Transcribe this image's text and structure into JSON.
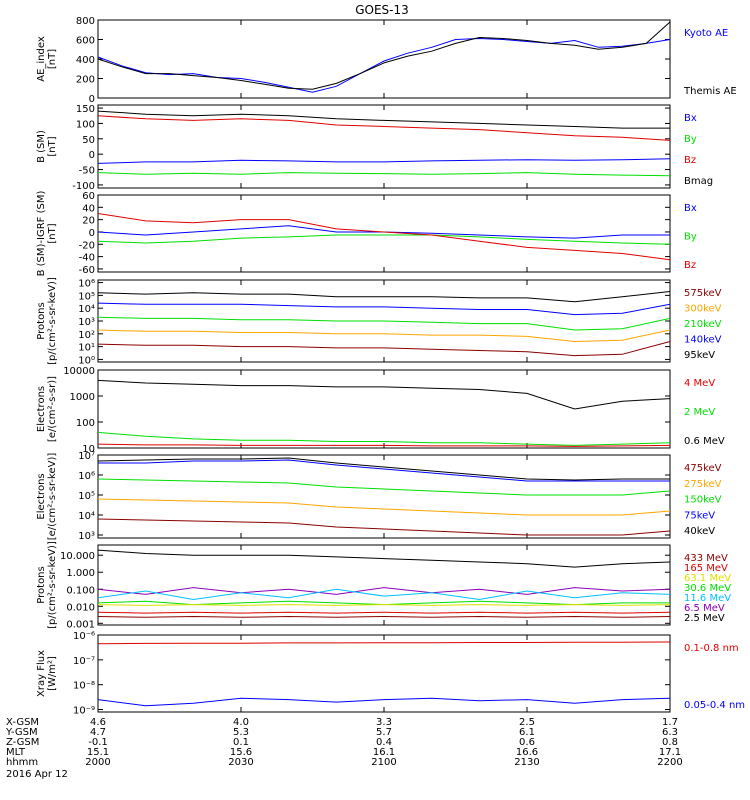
{
  "title": "GOES-13",
  "colors": {
    "black": "#000000",
    "blue": "#0000ff",
    "green": "#00e000",
    "red": "#e00000",
    "orange": "#ffa500",
    "darkred": "#8b0000",
    "gold": "#e0e000",
    "cyan": "#00bfff",
    "purple": "#8b00b8"
  },
  "footer": {
    "rows": [
      {
        "label": "X-GSM",
        "values": [
          "4.6",
          "4.0",
          "3.3",
          "2.5",
          "1.7"
        ]
      },
      {
        "label": "Y-GSM",
        "values": [
          "4.7",
          "5.3",
          "5.7",
          "6.1",
          "6.3"
        ]
      },
      {
        "label": "Z-GSM",
        "values": [
          "-0.1",
          "0.1",
          "0.4",
          "0.6",
          "0.8"
        ]
      },
      {
        "label": "MLT",
        "values": [
          "15.1",
          "15.6",
          "16.1",
          "16.6",
          "17.1"
        ]
      },
      {
        "label": "hhmm",
        "values": [
          "2000",
          "2030",
          "2100",
          "2130",
          "2200"
        ]
      }
    ],
    "date": "2016 Apr 12"
  },
  "chart_data": [
    {
      "type": "line",
      "ylabel": [
        "AE_index",
        "[nT]"
      ],
      "ylim": [
        0,
        800
      ],
      "yticks": [
        "0",
        "200",
        "400",
        "600",
        "800"
      ],
      "legend": [
        {
          "name": "Kyoto AE",
          "color": "blue"
        },
        {
          "name": "Themis AE",
          "color": "black"
        }
      ],
      "x": [
        2000,
        2005,
        2010,
        2015,
        2020,
        2025,
        2030,
        2035,
        2040,
        2045,
        2050,
        2055,
        2100,
        2105,
        2110,
        2115,
        2120,
        2125,
        2130,
        2135,
        2140,
        2145,
        2150,
        2155,
        2200
      ],
      "series": [
        {
          "name": "Kyoto AE",
          "color": "blue",
          "values": [
            420,
            330,
            260,
            240,
            250,
            210,
            200,
            160,
            110,
            60,
            120,
            250,
            380,
            460,
            520,
            600,
            610,
            600,
            580,
            560,
            590,
            520,
            530,
            560,
            600
          ]
        },
        {
          "name": "Themis AE",
          "color": "black",
          "values": [
            400,
            320,
            250,
            250,
            230,
            210,
            180,
            140,
            100,
            90,
            150,
            250,
            360,
            430,
            480,
            560,
            620,
            610,
            590,
            560,
            540,
            500,
            520,
            560,
            780
          ]
        }
      ]
    },
    {
      "type": "line",
      "ylabel": [
        "B (SM)",
        "[nT]"
      ],
      "ylim": [
        -110,
        160
      ],
      "yticks": [
        "-100",
        "-50",
        "0",
        "50",
        "100",
        "150"
      ],
      "legend": [
        {
          "name": "Bx",
          "color": "blue"
        },
        {
          "name": "By",
          "color": "green"
        },
        {
          "name": "Bz",
          "color": "red"
        },
        {
          "name": "Bmag",
          "color": "black"
        }
      ],
      "x": [
        2000,
        2010,
        2020,
        2030,
        2040,
        2050,
        2100,
        2110,
        2120,
        2130,
        2140,
        2150,
        2200
      ],
      "series": [
        {
          "name": "Bx",
          "color": "blue",
          "values": [
            -30,
            -25,
            -25,
            -20,
            -22,
            -25,
            -25,
            -22,
            -20,
            -18,
            -20,
            -18,
            -15
          ]
        },
        {
          "name": "By",
          "color": "green",
          "values": [
            -60,
            -65,
            -62,
            -65,
            -60,
            -62,
            -63,
            -65,
            -63,
            -60,
            -65,
            -68,
            -70
          ]
        },
        {
          "name": "Bz",
          "color": "red",
          "values": [
            125,
            115,
            110,
            115,
            110,
            95,
            90,
            85,
            80,
            70,
            60,
            55,
            45
          ]
        },
        {
          "name": "Bmag",
          "color": "black",
          "values": [
            140,
            130,
            125,
            130,
            125,
            115,
            110,
            105,
            100,
            95,
            90,
            85,
            85
          ]
        }
      ]
    },
    {
      "type": "line",
      "ylabel": [
        "B (SM)-IGRF (SM)",
        "[nT]"
      ],
      "ylim": [
        -65,
        60
      ],
      "yticks": [
        "-60",
        "-40",
        "-20",
        "0",
        "20",
        "40",
        "60"
      ],
      "legend": [
        {
          "name": "Bx",
          "color": "blue"
        },
        {
          "name": "By",
          "color": "green"
        },
        {
          "name": "Bz",
          "color": "red"
        }
      ],
      "x": [
        2000,
        2010,
        2020,
        2030,
        2040,
        2050,
        2100,
        2110,
        2120,
        2130,
        2140,
        2150,
        2200
      ],
      "series": [
        {
          "name": "Bx",
          "color": "blue",
          "values": [
            0,
            -5,
            0,
            5,
            10,
            0,
            0,
            -2,
            -5,
            -8,
            -10,
            -5,
            -5
          ]
        },
        {
          "name": "By",
          "color": "green",
          "values": [
            -15,
            -18,
            -15,
            -10,
            -8,
            -5,
            -5,
            -5,
            -8,
            -12,
            -15,
            -18,
            -20
          ]
        },
        {
          "name": "Bz",
          "color": "red",
          "values": [
            30,
            18,
            15,
            20,
            20,
            5,
            0,
            -5,
            -15,
            -25,
            -30,
            -35,
            -45
          ]
        }
      ]
    },
    {
      "type": "line",
      "log_scale": true,
      "ylabel": [
        "Protons",
        "[p/(cm²-s-sr-keV)]"
      ],
      "ylim_log10": [
        -0.2,
        6.2
      ],
      "yticks": [
        "10⁰",
        "10¹",
        "10²",
        "10³",
        "10⁴",
        "10⁵",
        "10⁶"
      ],
      "legend": [
        {
          "name": "575keV",
          "color": "darkred"
        },
        {
          "name": "300keV",
          "color": "orange"
        },
        {
          "name": "210keV",
          "color": "green"
        },
        {
          "name": "140keV",
          "color": "blue"
        },
        {
          "name": "95keV",
          "color": "black"
        }
      ],
      "x": [
        2000,
        2010,
        2020,
        2030,
        2040,
        2050,
        2100,
        2110,
        2120,
        2130,
        2140,
        2150,
        2200
      ],
      "series": [
        {
          "name": "95keV",
          "color": "black",
          "log10_values": [
            5.2,
            5.1,
            5.2,
            5.1,
            5.1,
            4.9,
            4.9,
            4.9,
            4.8,
            4.8,
            4.5,
            4.9,
            5.3
          ]
        },
        {
          "name": "140keV",
          "color": "blue",
          "log10_values": [
            4.4,
            4.3,
            4.3,
            4.3,
            4.2,
            4.1,
            4.1,
            4.0,
            3.9,
            3.9,
            3.5,
            3.6,
            4.3
          ]
        },
        {
          "name": "210keV",
          "color": "green",
          "log10_values": [
            3.3,
            3.2,
            3.2,
            3.1,
            3.1,
            3.0,
            3.0,
            2.9,
            2.8,
            2.8,
            2.3,
            2.4,
            3.2
          ]
        },
        {
          "name": "300keV",
          "color": "orange",
          "log10_values": [
            2.3,
            2.2,
            2.2,
            2.1,
            2.1,
            2.0,
            2.0,
            1.9,
            1.9,
            1.8,
            1.4,
            1.5,
            2.3
          ]
        },
        {
          "name": "575keV",
          "color": "darkred",
          "log10_values": [
            1.2,
            1.1,
            1.1,
            1.0,
            1.0,
            0.9,
            0.9,
            0.8,
            0.7,
            0.6,
            0.3,
            0.4,
            1.4
          ]
        }
      ]
    },
    {
      "type": "line",
      "log_scale": true,
      "ylabel": [
        "Electrons",
        "[e/(cm²-s-sr)]"
      ],
      "ylim_log10": [
        1.0,
        4.0
      ],
      "yticks": [
        "10",
        "100",
        "1000",
        "10000"
      ],
      "legend": [
        {
          "name": "4 MeV",
          "color": "red"
        },
        {
          "name": "2 MeV",
          "color": "green"
        },
        {
          "name": "0.6 MeV",
          "color": "black"
        }
      ],
      "x": [
        2000,
        2010,
        2020,
        2030,
        2040,
        2050,
        2100,
        2110,
        2120,
        2130,
        2140,
        2150,
        2200
      ],
      "series": [
        {
          "name": "0.6 MeV",
          "color": "black",
          "log10_values": [
            3.6,
            3.5,
            3.45,
            3.4,
            3.4,
            3.35,
            3.35,
            3.3,
            3.25,
            3.1,
            2.5,
            2.8,
            2.9
          ]
        },
        {
          "name": "2 MeV",
          "color": "green",
          "log10_values": [
            1.6,
            1.45,
            1.35,
            1.3,
            1.3,
            1.25,
            1.25,
            1.2,
            1.2,
            1.15,
            1.1,
            1.15,
            1.2
          ]
        },
        {
          "name": "4 MeV",
          "color": "red",
          "log10_values": [
            1.15,
            1.12,
            1.12,
            1.1,
            1.1,
            1.1,
            1.1,
            1.08,
            1.08,
            1.08,
            1.06,
            1.08,
            1.1
          ]
        }
      ]
    },
    {
      "type": "line",
      "log_scale": true,
      "ylabel": [
        "Electrons",
        "[e/(cm²-s-sr-keV)]"
      ],
      "ylim_log10": [
        2.85,
        7.0
      ],
      "yticks": [
        "10³",
        "10⁴",
        "10⁵",
        "10⁶",
        "10⁷"
      ],
      "legend": [
        {
          "name": "475keV",
          "color": "darkred"
        },
        {
          "name": "275keV",
          "color": "orange"
        },
        {
          "name": "150keV",
          "color": "green"
        },
        {
          "name": "75keV",
          "color": "blue"
        },
        {
          "name": "40keV",
          "color": "black"
        }
      ],
      "x": [
        2000,
        2010,
        2020,
        2030,
        2040,
        2050,
        2100,
        2110,
        2120,
        2130,
        2140,
        2150,
        2200
      ],
      "series": [
        {
          "name": "40keV",
          "color": "black",
          "log10_values": [
            6.7,
            6.75,
            6.8,
            6.8,
            6.85,
            6.6,
            6.4,
            6.2,
            6.0,
            5.8,
            5.75,
            5.8,
            5.8
          ]
        },
        {
          "name": "75keV",
          "color": "blue",
          "log10_values": [
            6.6,
            6.6,
            6.7,
            6.7,
            6.75,
            6.5,
            6.3,
            6.1,
            5.9,
            5.7,
            5.7,
            5.7,
            5.7
          ]
        },
        {
          "name": "150keV",
          "color": "green",
          "log10_values": [
            5.8,
            5.75,
            5.7,
            5.65,
            5.6,
            5.4,
            5.3,
            5.2,
            5.1,
            5.0,
            5.0,
            5.0,
            5.2
          ]
        },
        {
          "name": "275keV",
          "color": "orange",
          "log10_values": [
            4.8,
            4.75,
            4.7,
            4.65,
            4.6,
            4.4,
            4.3,
            4.2,
            4.1,
            4.0,
            4.0,
            4.0,
            4.2
          ]
        },
        {
          "name": "475keV",
          "color": "darkred",
          "log10_values": [
            3.8,
            3.75,
            3.7,
            3.65,
            3.6,
            3.4,
            3.3,
            3.2,
            3.1,
            3.0,
            3.0,
            3.0,
            3.2
          ]
        }
      ]
    },
    {
      "type": "line",
      "log_scale": true,
      "ylabel": [
        "Protons",
        "[p/(cm²-s-sr-keV)]"
      ],
      "ylim_log10": [
        -3.1,
        1.6
      ],
      "yticks": [
        "0.001",
        "0.010",
        "0.100",
        "1.000",
        "10.000"
      ],
      "legend": [
        {
          "name": "433 MeV",
          "color": "darkred"
        },
        {
          "name": "165 MeV",
          "color": "red"
        },
        {
          "name": "63.1 MeV",
          "color": "gold"
        },
        {
          "name": "30.6 MeV",
          "color": "green"
        },
        {
          "name": "11.6 MeV",
          "color": "cyan"
        },
        {
          "name": "6.5 MeV",
          "color": "purple"
        },
        {
          "name": "2.5 MeV",
          "color": "black"
        }
      ],
      "x": [
        2000,
        2010,
        2020,
        2030,
        2040,
        2050,
        2100,
        2110,
        2120,
        2130,
        2140,
        2150,
        2200
      ],
      "series": [
        {
          "name": "2.5 MeV",
          "color": "black",
          "log10_values": [
            1.3,
            1.1,
            1.0,
            1.0,
            1.0,
            0.9,
            0.8,
            0.7,
            0.6,
            0.5,
            0.3,
            0.5,
            0.6
          ]
        },
        {
          "name": "6.5 MeV",
          "color": "purple",
          "log10_values": [
            -1.0,
            -1.3,
            -0.9,
            -1.2,
            -1.0,
            -1.3,
            -0.9,
            -1.2,
            -1.0,
            -1.3,
            -0.9,
            -1.1,
            -1.0
          ]
        },
        {
          "name": "11.6 MeV",
          "color": "cyan",
          "log10_values": [
            -1.5,
            -1.1,
            -1.6,
            -1.2,
            -1.5,
            -1.0,
            -1.4,
            -1.2,
            -1.6,
            -1.1,
            -1.5,
            -1.2,
            -1.3
          ]
        },
        {
          "name": "30.6 MeV",
          "color": "green",
          "log10_values": [
            -1.8,
            -1.7,
            -1.9,
            -1.8,
            -1.7,
            -1.8,
            -1.9,
            -1.8,
            -1.7,
            -1.8,
            -1.9,
            -1.8,
            -1.8
          ]
        },
        {
          "name": "63.1 MeV",
          "color": "gold",
          "log10_values": [
            -1.9,
            -1.95,
            -1.9,
            -1.95,
            -1.9,
            -1.95,
            -1.9,
            -1.95,
            -1.9,
            -1.95,
            -1.9,
            -1.95,
            -1.9
          ]
        },
        {
          "name": "165 MeV",
          "color": "red",
          "log10_values": [
            -2.35,
            -2.4,
            -2.35,
            -2.4,
            -2.35,
            -2.4,
            -2.35,
            -2.4,
            -2.35,
            -2.4,
            -2.35,
            -2.4,
            -2.35
          ]
        },
        {
          "name": "433 MeV",
          "color": "darkred",
          "log10_values": [
            -2.6,
            -2.65,
            -2.6,
            -2.65,
            -2.6,
            -2.65,
            -2.6,
            -2.65,
            -2.6,
            -2.65,
            -2.6,
            -2.65,
            -2.6
          ]
        }
      ]
    },
    {
      "type": "line",
      "log_scale": true,
      "ylabel": [
        "Xray Flux",
        "[W/m²]"
      ],
      "ylim_log10": [
        -9.1,
        -6.0
      ],
      "yticks": [
        "10⁻⁹",
        "10⁻⁸",
        "10⁻⁷",
        "10⁻⁶"
      ],
      "tick_log10": [
        -9,
        -8,
        -7,
        -6
      ],
      "legend": [
        {
          "name": "0.1-0.8 nm",
          "color": "red"
        },
        {
          "name": "0.05-0.4 nm",
          "color": "blue"
        }
      ],
      "x": [
        2000,
        2010,
        2020,
        2030,
        2040,
        2050,
        2100,
        2110,
        2120,
        2130,
        2140,
        2150,
        2200
      ],
      "series": [
        {
          "name": "0.1-0.8 nm",
          "color": "red",
          "log10_values": [
            -6.35,
            -6.34,
            -6.33,
            -6.33,
            -6.32,
            -6.32,
            -6.31,
            -6.31,
            -6.3,
            -6.3,
            -6.29,
            -6.29,
            -6.28
          ]
        },
        {
          "name": "0.05-0.4 nm",
          "color": "blue",
          "log10_values": [
            -8.6,
            -8.85,
            -8.75,
            -8.55,
            -8.6,
            -8.7,
            -8.6,
            -8.55,
            -8.65,
            -8.6,
            -8.75,
            -8.6,
            -8.55
          ]
        }
      ]
    }
  ]
}
